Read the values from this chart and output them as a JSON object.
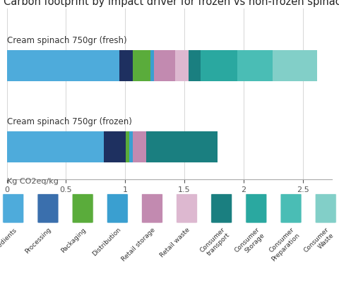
{
  "title": "Carbon footprint by impact driver for frozen vs non-frozen spinach",
  "bar_labels": [
    "Cream spinach 750gr (fresh)",
    "Cream spinach 750gr (frozen)"
  ],
  "xlabel": "Kg CO2eq/kg",
  "xlim": [
    0,
    2.75
  ],
  "xticks": [
    0,
    0.5,
    1.0,
    1.5,
    2.0,
    2.5
  ],
  "xtick_labels": [
    "0",
    "0.5",
    "1",
    "1.5",
    "2",
    "2.5"
  ],
  "colors": [
    "#4eabdb",
    "#1e3060",
    "#5aac3b",
    "#3a9fd0",
    "#c28ab0",
    "#ddb8d0",
    "#1a7f80",
    "#2aa8a0",
    "#4abdb5",
    "#82cfc8"
  ],
  "icon_colors": [
    "#4eabdb",
    "#3a6fad",
    "#5aac3b",
    "#3a9fd0",
    "#c28ab0",
    "#ddb8d0",
    "#1a7f80",
    "#2aa8a0",
    "#4abdb5",
    "#82cfc8"
  ],
  "fresh_values": [
    0.95,
    0.115,
    0.15,
    0.03,
    0.175,
    0.115,
    0.1,
    0.315,
    0.295,
    0.38
  ],
  "frozen_values": [
    0.82,
    0.185,
    0.03,
    0.03,
    0.115,
    0.0,
    0.6,
    0.0,
    0.0,
    0.0
  ],
  "icon_labels": [
    "Ingredients",
    "Processing",
    "Packaging",
    "Distribution",
    "Retail storage",
    "Retail waste",
    "Consumer\ntransport",
    "Consumer\nStorage",
    "Consumer\nPreparation",
    "Consumer\nWaste"
  ],
  "background_color": "#ffffff",
  "title_fontsize": 10.5,
  "bar_label_fontsize": 8.5,
  "axis_fontsize": 8,
  "icon_label_fontsize": 6.5
}
